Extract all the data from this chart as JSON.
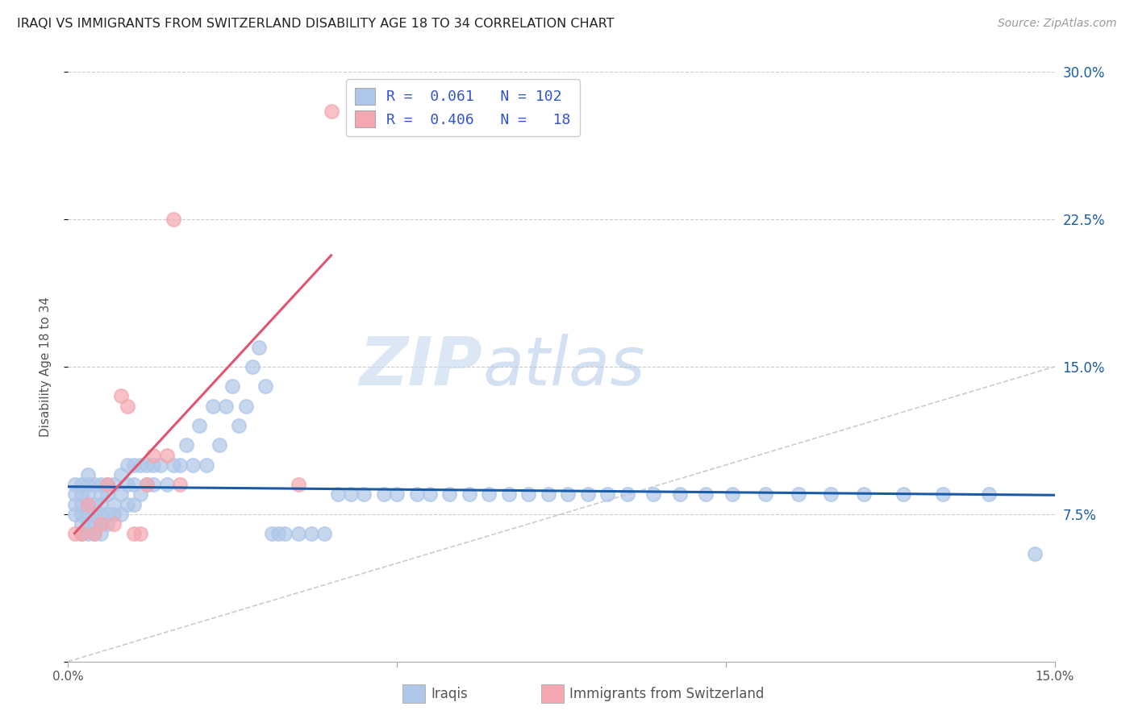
{
  "title": "IRAQI VS IMMIGRANTS FROM SWITZERLAND DISABILITY AGE 18 TO 34 CORRELATION CHART",
  "source": "Source: ZipAtlas.com",
  "ylabel": "Disability Age 18 to 34",
  "xlim": [
    0.0,
    0.15
  ],
  "ylim": [
    0.0,
    0.3
  ],
  "xticks": [
    0.0,
    0.05,
    0.1,
    0.15
  ],
  "xtick_labels": [
    "0.0%",
    "",
    "",
    "15.0%"
  ],
  "yticks": [
    0.0,
    0.075,
    0.15,
    0.225,
    0.3
  ],
  "ytick_labels_right": [
    "",
    "7.5%",
    "15.0%",
    "22.5%",
    "30.0%"
  ],
  "iraqis_R": 0.061,
  "iraqis_N": 102,
  "swiss_R": 0.406,
  "swiss_N": 18,
  "iraqis_color": "#aec6e8",
  "swiss_color": "#f4a7b0",
  "iraqis_line_color": "#1a5ca8",
  "swiss_line_color": "#e05570",
  "diagonal_color": "#cccccc",
  "background_color": "#ffffff",
  "grid_color": "#cccccc",
  "legend_text_color": "#3355cc",
  "watermark_zip": "ZIP",
  "watermark_atlas": "atlas",
  "iraqis_x": [
    0.001,
    0.001,
    0.001,
    0.001,
    0.002,
    0.002,
    0.002,
    0.002,
    0.002,
    0.002,
    0.003,
    0.003,
    0.003,
    0.003,
    0.003,
    0.003,
    0.003,
    0.004,
    0.004,
    0.004,
    0.004,
    0.004,
    0.005,
    0.005,
    0.005,
    0.005,
    0.005,
    0.005,
    0.006,
    0.006,
    0.006,
    0.006,
    0.007,
    0.007,
    0.007,
    0.008,
    0.008,
    0.008,
    0.009,
    0.009,
    0.009,
    0.01,
    0.01,
    0.01,
    0.011,
    0.011,
    0.012,
    0.012,
    0.013,
    0.013,
    0.014,
    0.015,
    0.016,
    0.017,
    0.018,
    0.019,
    0.02,
    0.021,
    0.022,
    0.023,
    0.024,
    0.025,
    0.026,
    0.027,
    0.028,
    0.029,
    0.03,
    0.031,
    0.032,
    0.033,
    0.035,
    0.037,
    0.039,
    0.041,
    0.043,
    0.045,
    0.048,
    0.05,
    0.053,
    0.055,
    0.058,
    0.061,
    0.064,
    0.067,
    0.07,
    0.073,
    0.076,
    0.079,
    0.082,
    0.085,
    0.089,
    0.093,
    0.097,
    0.101,
    0.106,
    0.111,
    0.116,
    0.121,
    0.127,
    0.133,
    0.14,
    0.147
  ],
  "iraqis_y": [
    0.075,
    0.08,
    0.085,
    0.09,
    0.065,
    0.07,
    0.075,
    0.08,
    0.085,
    0.09,
    0.065,
    0.07,
    0.075,
    0.08,
    0.085,
    0.09,
    0.095,
    0.065,
    0.07,
    0.075,
    0.08,
    0.09,
    0.065,
    0.07,
    0.075,
    0.08,
    0.085,
    0.09,
    0.07,
    0.075,
    0.085,
    0.09,
    0.075,
    0.08,
    0.09,
    0.075,
    0.085,
    0.095,
    0.08,
    0.09,
    0.1,
    0.08,
    0.09,
    0.1,
    0.085,
    0.1,
    0.09,
    0.1,
    0.09,
    0.1,
    0.1,
    0.09,
    0.1,
    0.1,
    0.11,
    0.1,
    0.12,
    0.1,
    0.13,
    0.11,
    0.13,
    0.14,
    0.12,
    0.13,
    0.15,
    0.16,
    0.14,
    0.065,
    0.065,
    0.065,
    0.065,
    0.065,
    0.065,
    0.085,
    0.085,
    0.085,
    0.085,
    0.085,
    0.085,
    0.085,
    0.085,
    0.085,
    0.085,
    0.085,
    0.085,
    0.085,
    0.085,
    0.085,
    0.085,
    0.085,
    0.085,
    0.085,
    0.085,
    0.085,
    0.085,
    0.085,
    0.085,
    0.085,
    0.085,
    0.085,
    0.085,
    0.055
  ],
  "swiss_x": [
    0.001,
    0.002,
    0.003,
    0.004,
    0.005,
    0.006,
    0.007,
    0.008,
    0.009,
    0.01,
    0.011,
    0.012,
    0.013,
    0.015,
    0.016,
    0.017,
    0.035,
    0.04
  ],
  "swiss_y": [
    0.065,
    0.065,
    0.08,
    0.065,
    0.07,
    0.09,
    0.07,
    0.135,
    0.13,
    0.065,
    0.065,
    0.09,
    0.105,
    0.105,
    0.225,
    0.09,
    0.09,
    0.28
  ],
  "legend_iraqis_label": "R =  0.061   N = 102",
  "legend_swiss_label": "R =  0.406   N =   18",
  "bottom_label_iraqis": "Iraqis",
  "bottom_label_swiss": "Immigrants from Switzerland"
}
